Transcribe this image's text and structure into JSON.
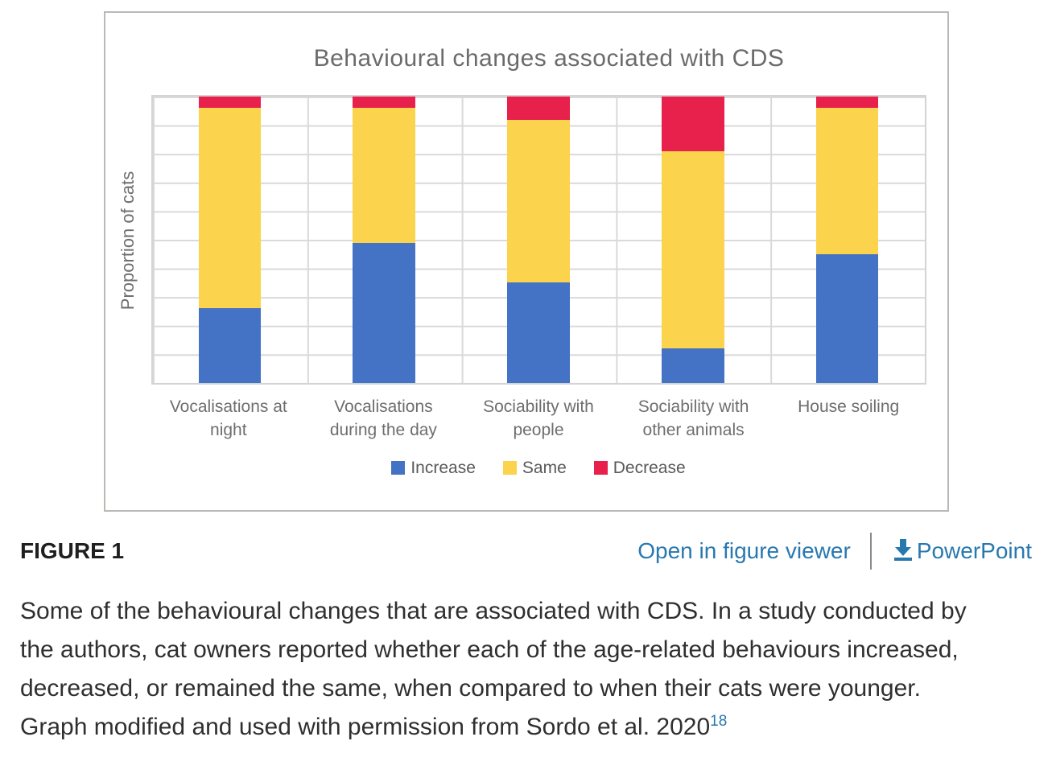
{
  "chart_data": {
    "type": "bar",
    "stacked": true,
    "title": "Behavioural changes associated with CDS",
    "xlabel": "",
    "ylabel": "Proportion of cats",
    "categories": [
      "Vocalisations at night",
      "Vocalisations during the day",
      "Sociability with people",
      "Sociability with other animals",
      "House soiling"
    ],
    "series": [
      {
        "name": "Increase",
        "color": "#4472c4",
        "values": [
          26,
          49,
          35,
          12,
          45
        ]
      },
      {
        "name": "Same",
        "color": "#fbd34d",
        "values": [
          70,
          47,
          57,
          69,
          51
        ]
      },
      {
        "name": "Decrease",
        "color": "#e8204c",
        "values": [
          4,
          4,
          8,
          19,
          4
        ]
      }
    ],
    "ylim": [
      0,
      100
    ],
    "y_gridline_step": 10,
    "grid": true,
    "legend_position": "bottom",
    "value_unit": "proportion of cats (no numeric tick labels shown)"
  },
  "figure": {
    "label": "FIGURE 1",
    "links": {
      "open_viewer": "Open in figure viewer",
      "powerpoint": "PowerPoint"
    },
    "caption": "Some of the behavioural changes that are associated with CDS. In a study conducted by the authors, cat owners reported whether each of the age-related behaviours increased, decreased, or remained the same, when compared to when their cats were younger. Graph modified and used with permission from Sordo et al. 2020",
    "caption_ref": "18"
  },
  "colors": {
    "link_blue": "#2878af",
    "grid_gray": "#d9d9d9",
    "panel_border": "#b9b9b5",
    "title_gray": "#6b6b6b"
  },
  "icons": {
    "download": "download-arrow-icon"
  }
}
